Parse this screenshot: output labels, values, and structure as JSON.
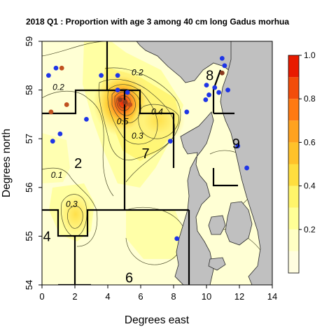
{
  "chart_data": {
    "type": "heatmap",
    "title": "2018 Q1 : Proportion with age 3 among 40 cm long Gadus morhua",
    "xlabel": "Degrees east",
    "ylabel": "Degrees north",
    "xlim": [
      0,
      14
    ],
    "ylim": [
      54,
      59
    ],
    "x_ticks": [
      "0",
      "2",
      "4",
      "6",
      "8",
      "10",
      "12",
      "14"
    ],
    "y_ticks": [
      "54",
      "55",
      "56",
      "57",
      "58",
      "59"
    ],
    "legend": {
      "position": "right",
      "range": [
        0,
        1
      ],
      "tick_labels": [
        "0.2",
        "0.4",
        "0.6",
        "0.8",
        "1.0"
      ],
      "colors": [
        "#fffde0",
        "#ffffc4",
        "#ffff96",
        "#fff56a",
        "#ffde3e",
        "#ffc22a",
        "#ffa21f",
        "#ff7a12",
        "#f24d0a",
        "#e81b00"
      ]
    },
    "contour_labels": [
      {
        "text": "0.2",
        "x": 1.0,
        "y": 58.0
      },
      {
        "text": "0.2",
        "x": 5.8,
        "y": 58.3
      },
      {
        "text": "0.1",
        "x": 0.9,
        "y": 56.2
      },
      {
        "text": "0.3",
        "x": 1.8,
        "y": 55.6
      },
      {
        "text": "0.3",
        "x": 5.8,
        "y": 57.0
      },
      {
        "text": "0.4",
        "x": 7.0,
        "y": 57.5
      },
      {
        "text": "0.5",
        "x": 4.9,
        "y": 57.3
      }
    ],
    "regions": [
      {
        "label": "2",
        "x": 2.2,
        "y": 56.4
      },
      {
        "label": "4",
        "x": 0.3,
        "y": 54.9
      },
      {
        "label": "6",
        "x": 5.3,
        "y": 54.05
      },
      {
        "label": "7",
        "x": 6.3,
        "y": 56.6
      },
      {
        "label": "8",
        "x": 10.2,
        "y": 58.2
      },
      {
        "label": "9",
        "x": 11.8,
        "y": 56.8
      }
    ],
    "hotspots": [
      {
        "x": 4.9,
        "y": 57.75,
        "value": 0.95
      },
      {
        "x": 1.9,
        "y": 55.45,
        "value": 0.35
      },
      {
        "x": 7.2,
        "y": 57.3,
        "value": 0.45
      }
    ],
    "stations": [
      {
        "x": 0.4,
        "y": 58.3,
        "value": 0.05
      },
      {
        "x": 0.85,
        "y": 58.45,
        "value": 0.05
      },
      {
        "x": 1.2,
        "y": 58.45,
        "value": 0.75
      },
      {
        "x": 1.5,
        "y": 57.7,
        "value": 0.75
      },
      {
        "x": 0.55,
        "y": 57.55,
        "value": 0.75
      },
      {
        "x": 2.7,
        "y": 57.4,
        "value": 0.05
      },
      {
        "x": 1.1,
        "y": 57.1,
        "value": 0.05
      },
      {
        "x": 0.65,
        "y": 56.95,
        "value": 0.05
      },
      {
        "x": 3.6,
        "y": 58.3,
        "value": 0.05
      },
      {
        "x": 4.6,
        "y": 58.3,
        "value": 0.05
      },
      {
        "x": 4.6,
        "y": 58.0,
        "value": 0.05
      },
      {
        "x": 5.2,
        "y": 57.95,
        "value": 0.05
      },
      {
        "x": 4.75,
        "y": 57.8,
        "value": 0.85
      },
      {
        "x": 5.05,
        "y": 57.75,
        "value": 0.85
      },
      {
        "x": 5.35,
        "y": 57.7,
        "value": 0.75
      },
      {
        "x": 8.8,
        "y": 57.55,
        "value": 0.05
      },
      {
        "x": 7.8,
        "y": 56.95,
        "value": 0.05
      },
      {
        "x": 8.2,
        "y": 54.95,
        "value": 0.05
      },
      {
        "x": 10.95,
        "y": 58.65,
        "value": 0.05
      },
      {
        "x": 11.1,
        "y": 58.5,
        "value": 0.05
      },
      {
        "x": 10.95,
        "y": 58.35,
        "value": 0.85
      },
      {
        "x": 10.0,
        "y": 58.1,
        "value": 0.05
      },
      {
        "x": 10.15,
        "y": 57.9,
        "value": 0.05
      },
      {
        "x": 10.5,
        "y": 58.05,
        "value": 0.05
      },
      {
        "x": 10.75,
        "y": 57.95,
        "value": 0.05
      },
      {
        "x": 11.3,
        "y": 58.0,
        "value": 0.05
      },
      {
        "x": 9.95,
        "y": 57.8,
        "value": 0.05
      },
      {
        "x": 11.9,
        "y": 56.85,
        "value": 0.05
      },
      {
        "x": 12.45,
        "y": 56.4,
        "value": 0.05
      }
    ]
  }
}
